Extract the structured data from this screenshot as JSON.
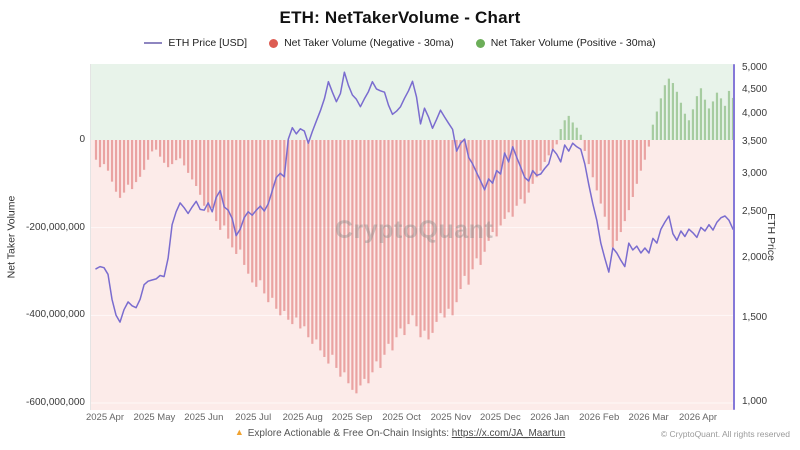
{
  "header": {
    "title": "ETH: NetTakerVolume - Chart"
  },
  "legend": {
    "items": [
      {
        "label": "ETH Price [USD]",
        "type": "line",
        "color": "#8e86c0"
      },
      {
        "label": "Net Taker Volume (Negative - 30ma)",
        "type": "dot",
        "color": "#dd5c52"
      },
      {
        "label": "Net Taker Volume (Positive - 30ma)",
        "type": "dot",
        "color": "#6cae59"
      }
    ]
  },
  "axes": {
    "left": {
      "title": "Net Taker Volume",
      "ticks": [
        {
          "label": "0",
          "value_musd": 0
        },
        {
          "label": "-200,000,000",
          "value_musd": -200
        },
        {
          "label": "-400,000,000",
          "value_musd": -400
        },
        {
          "label": "-600,000,000",
          "value_musd": -600
        }
      ]
    },
    "right": {
      "title": "ETH Price",
      "scale": "log",
      "ticks": [
        {
          "label": "5,000",
          "value": 5000
        },
        {
          "label": "4,500",
          "value": 4500
        },
        {
          "label": "4,000",
          "value": 4000
        },
        {
          "label": "3,500",
          "value": 3500
        },
        {
          "label": "3,000",
          "value": 3000
        },
        {
          "label": "2,500",
          "value": 2500
        },
        {
          "label": "2,000",
          "value": 2000
        },
        {
          "label": "1,500",
          "value": 1500
        },
        {
          "label": "1,000",
          "value": 1000
        }
      ]
    },
    "x": {
      "labels": [
        "2025 Apr",
        "2025 May",
        "2025 Jun",
        "2025 Jul",
        "2025 Aug",
        "2025 Sep",
        "2025 Oct",
        "2025 Nov",
        "2025 Dec",
        "2026 Jan",
        "2026 Feb",
        "2026 Mar",
        "2026 Apr"
      ]
    }
  },
  "watermark": {
    "text": "CryptoQuant"
  },
  "footer": {
    "notice": "Explore Actionable & Free On-Chain Insights:",
    "link": "https://x.com/JA_Maartun",
    "copyright": "© CryptoQuant. All rights reserved"
  },
  "chart_data": {
    "type": "combo",
    "title": "ETH: NetTakerVolume - Chart",
    "x_start": "2025 Apr",
    "x_end": "2026 Apr",
    "x_note": "160 samples, ~2.5-day spacing, Apr 2025 through late Apr 2026",
    "background_zones": {
      "positive_fill": "#e8f3ea",
      "negative_fill": "#fcebe9",
      "boundary_value": 0
    },
    "left_axis": {
      "label": "Net Taker Volume",
      "ticks_musd": [
        0,
        -200,
        -400,
        -600
      ],
      "unit": "USD"
    },
    "right_axis": {
      "label": "ETH Price",
      "scale": "log",
      "min": 1000,
      "max": 5000
    },
    "series": [
      {
        "name": "ETH Price [USD]",
        "type": "line",
        "axis": "right",
        "color": "#7a6ccf",
        "values": [
          1900,
          1920,
          1910,
          1850,
          1640,
          1520,
          1470,
          1560,
          1620,
          1590,
          1575,
          1640,
          1760,
          1790,
          1800,
          1810,
          1840,
          1830,
          2000,
          2350,
          2500,
          2610,
          2550,
          2480,
          2560,
          2630,
          2530,
          2520,
          2610,
          2500,
          2680,
          2770,
          2560,
          2520,
          2420,
          2230,
          2300,
          2430,
          2500,
          2460,
          2520,
          2570,
          2510,
          2600,
          2770,
          2950,
          3010,
          2960,
          3550,
          3750,
          3640,
          3730,
          3690,
          3480,
          3680,
          3870,
          4070,
          4310,
          4680,
          4450,
          4250,
          4420,
          4900,
          4600,
          4390,
          4300,
          4150,
          4310,
          4460,
          4680,
          4520,
          4480,
          4450,
          4180,
          4000,
          4060,
          4150,
          4320,
          4480,
          4690,
          4350,
          3820,
          4120,
          3950,
          3740,
          3900,
          4080,
          3950,
          3830,
          3720,
          3350,
          3480,
          3550,
          3250,
          3150,
          3020,
          2900,
          2780,
          2930,
          2870,
          3050,
          3000,
          3320,
          3180,
          3420,
          3250,
          3100,
          2950,
          2900,
          3050,
          2980,
          3000,
          3080,
          3150,
          3380,
          3300,
          3180,
          3450,
          3350,
          3480,
          3420,
          3380,
          3150,
          2850,
          2600,
          2400,
          2150,
          2000,
          1870,
          2100,
          2050,
          1980,
          1920,
          2150,
          2080,
          2120,
          2050,
          2100,
          2050,
          2200,
          2150,
          2300,
          2380,
          2450,
          2250,
          2180,
          2280,
          2220,
          2300,
          2260,
          2210,
          2320,
          2280,
          2350,
          2290,
          2380,
          2430,
          2450,
          2400,
          2300
        ]
      },
      {
        "name": "Net Taker Volume (30ma)",
        "type": "bar",
        "axis": "left",
        "values_unit": "million USD",
        "color_negative": "#d96262",
        "color_positive": "#6aa85c",
        "values": [
          -45,
          -62,
          -55,
          -70,
          -95,
          -118,
          -132,
          -120,
          -102,
          -112,
          -96,
          -84,
          -68,
          -45,
          -26,
          -22,
          -38,
          -52,
          -62,
          -55,
          -46,
          -42,
          -58,
          -75,
          -90,
          -105,
          -125,
          -150,
          -165,
          -155,
          -185,
          -205,
          -195,
          -225,
          -245,
          -260,
          -250,
          -285,
          -305,
          -325,
          -335,
          -320,
          -350,
          -370,
          -360,
          -385,
          -400,
          -390,
          -410,
          -420,
          -405,
          -430,
          -425,
          -450,
          -465,
          -455,
          -480,
          -495,
          -510,
          -490,
          -520,
          -540,
          -530,
          -555,
          -570,
          -578,
          -560,
          -545,
          -555,
          -530,
          -505,
          -520,
          -490,
          -465,
          -480,
          -450,
          -430,
          -445,
          -420,
          -400,
          -425,
          -450,
          -435,
          -455,
          -440,
          -415,
          -395,
          -405,
          -385,
          -400,
          -370,
          -340,
          -310,
          -330,
          -295,
          -270,
          -285,
          -255,
          -230,
          -210,
          -220,
          -195,
          -180,
          -165,
          -175,
          -150,
          -135,
          -145,
          -120,
          -100,
          -85,
          -70,
          -50,
          -35,
          -20,
          -10,
          25,
          45,
          55,
          40,
          28,
          12,
          -25,
          -55,
          -85,
          -115,
          -145,
          -175,
          -205,
          -245,
          -230,
          -210,
          -185,
          -160,
          -130,
          -100,
          -70,
          -45,
          -15,
          35,
          65,
          95,
          125,
          140,
          130,
          110,
          85,
          60,
          45,
          70,
          100,
          118,
          92,
          72,
          88,
          108,
          95,
          78,
          112,
          96
        ]
      }
    ]
  }
}
